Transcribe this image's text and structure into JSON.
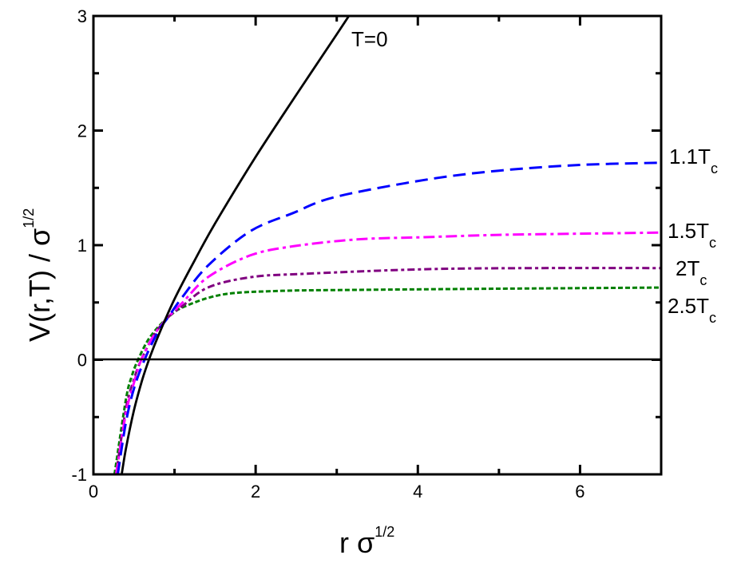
{
  "chart_data": {
    "type": "line",
    "title": "",
    "xlabel": "r σ",
    "xlabel_sup": "1/2",
    "ylabel": "V(r,T) / σ",
    "ylabel_sup": "1/2",
    "xlim": [
      0,
      7
    ],
    "ylim": [
      -1,
      3
    ],
    "xticks": [
      "0",
      "2",
      "4",
      "6"
    ],
    "yticks": [
      "-1",
      "0",
      "1",
      "2",
      "3"
    ],
    "grid": false,
    "legend": "curve labels at right end of each line",
    "zero_line": true,
    "series": [
      {
        "name": "T=0",
        "label": "T=0",
        "label_sub": "",
        "color": "#000000",
        "style": "solid",
        "points": [
          [
            0.34,
            -1.04
          ],
          [
            0.4,
            -0.78
          ],
          [
            0.5,
            -0.44
          ],
          [
            0.6,
            -0.18
          ],
          [
            0.7,
            0.03
          ],
          [
            0.8,
            0.21
          ],
          [
            1.0,
            0.53
          ],
          [
            1.25,
            0.87
          ],
          [
            1.5,
            1.19
          ],
          [
            2.0,
            1.77
          ],
          [
            2.5,
            2.31
          ],
          [
            3.0,
            2.84
          ],
          [
            3.15,
            3.0
          ]
        ]
      },
      {
        "name": "1.1Tc",
        "label": "1.1T",
        "label_sub": "c",
        "color": "#0000ff",
        "style": "dash",
        "points": [
          [
            0.3,
            -1
          ],
          [
            0.4,
            -0.55
          ],
          [
            0.5,
            -0.25
          ],
          [
            0.63,
            0
          ],
          [
            0.8,
            0.25
          ],
          [
            0.92,
            0.37
          ],
          [
            1.1,
            0.55
          ],
          [
            1.41,
            0.82
          ],
          [
            1.93,
            1.12
          ],
          [
            2.46,
            1.28
          ],
          [
            2.98,
            1.42
          ],
          [
            4.09,
            1.57
          ],
          [
            5,
            1.65
          ],
          [
            6,
            1.7
          ],
          [
            7,
            1.72
          ]
        ]
      },
      {
        "name": "1.5Tc",
        "label": "1.5T",
        "label_sub": "c",
        "color": "#ff00ff",
        "style": "dash-dot",
        "points": [
          [
            0.28,
            -1
          ],
          [
            0.4,
            -0.47
          ],
          [
            0.5,
            -0.2
          ],
          [
            0.59,
            0
          ],
          [
            0.75,
            0.22
          ],
          [
            0.92,
            0.37
          ],
          [
            1.1,
            0.5
          ],
          [
            1.41,
            0.72
          ],
          [
            1.93,
            0.91
          ],
          [
            2.46,
            0.99
          ],
          [
            3.25,
            1.05
          ],
          [
            4.09,
            1.07
          ],
          [
            5,
            1.09
          ],
          [
            6,
            1.1
          ],
          [
            7,
            1.11
          ]
        ]
      },
      {
        "name": "2Tc",
        "label": "2T",
        "label_sub": "c",
        "color": "#800080",
        "style": "dash-dot-short",
        "points": [
          [
            0.28,
            -1
          ],
          [
            0.4,
            -0.43
          ],
          [
            0.5,
            -0.17
          ],
          [
            0.59,
            0
          ],
          [
            0.75,
            0.22
          ],
          [
            0.92,
            0.37
          ],
          [
            1.1,
            0.47
          ],
          [
            1.41,
            0.63
          ],
          [
            1.93,
            0.72
          ],
          [
            2.59,
            0.75
          ],
          [
            4.09,
            0.79
          ],
          [
            5.5,
            0.8
          ],
          [
            7,
            0.8
          ]
        ]
      },
      {
        "name": "2.5Tc",
        "label": "2.5T",
        "label_sub": "c",
        "color": "#008000",
        "style": "short-dash",
        "points": [
          [
            0.26,
            -1
          ],
          [
            0.4,
            -0.35
          ],
          [
            0.47,
            -0.15
          ],
          [
            0.55,
            0
          ],
          [
            0.7,
            0.2
          ],
          [
            0.92,
            0.37
          ],
          [
            1.14,
            0.47
          ],
          [
            1.6,
            0.57
          ],
          [
            2.26,
            0.6
          ],
          [
            3.25,
            0.61
          ],
          [
            5,
            0.62
          ],
          [
            7,
            0.63
          ]
        ]
      }
    ]
  }
}
